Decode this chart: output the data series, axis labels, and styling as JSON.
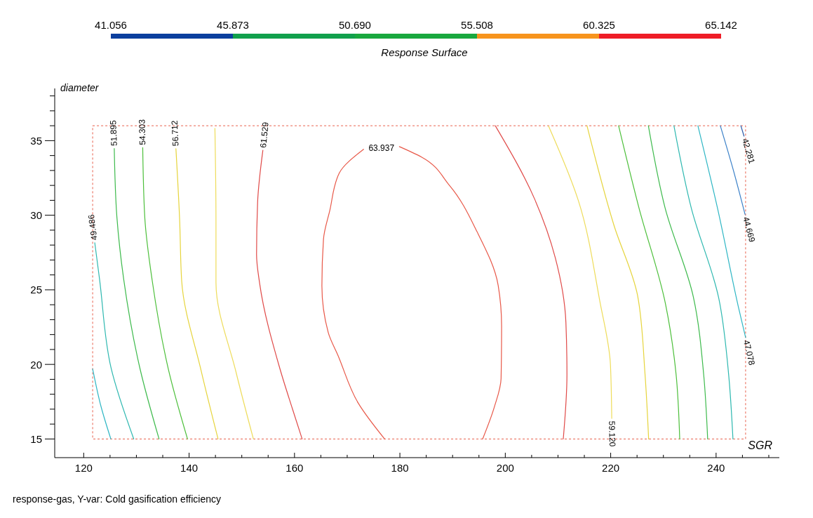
{
  "chart_data": {
    "type": "line",
    "title": "Response Surface",
    "xlabel": "SGR",
    "ylabel": "diameter",
    "annotations": [
      "response-gas, Y-var: Cold gasification efficiency"
    ],
    "xlim": [
      114.5,
      252
    ],
    "ylim": [
      13.75,
      38.5
    ],
    "xticks": [
      120,
      {
        "value": 125,
        "label": null
      },
      {
        "value": 130,
        "label": null
      },
      {
        "value": 135,
        "label": null
      },
      140,
      {
        "value": 145,
        "label": null
      },
      {
        "value": 150,
        "label": null
      },
      {
        "value": 155,
        "label": null
      },
      160,
      {
        "value": 165,
        "label": null
      },
      {
        "value": 170,
        "label": null
      },
      {
        "value": 175,
        "label": null
      },
      180,
      {
        "value": 185,
        "label": null
      },
      {
        "value": 190,
        "label": null
      },
      {
        "value": 195,
        "label": null
      },
      200,
      {
        "value": 205,
        "label": null
      },
      {
        "value": 210,
        "label": null
      },
      {
        "value": 215,
        "label": null
      },
      220,
      {
        "value": 225,
        "label": null
      },
      {
        "value": 230,
        "label": null
      },
      {
        "value": 235,
        "label": null
      },
      240,
      {
        "value": 245,
        "label": null
      },
      {
        "value": 250,
        "label": null
      }
    ],
    "yticks": [
      15,
      {
        "value": 16,
        "label": null
      },
      {
        "value": 17,
        "label": null
      },
      {
        "value": 18,
        "label": null
      },
      {
        "value": 19,
        "label": null
      },
      20,
      {
        "value": 21,
        "label": null
      },
      {
        "value": 22,
        "label": null
      },
      {
        "value": 23,
        "label": null
      },
      {
        "value": 24,
        "label": null
      },
      25,
      {
        "value": 26,
        "label": null
      },
      {
        "value": 27,
        "label": null
      },
      {
        "value": 28,
        "label": null
      },
      {
        "value": 29,
        "label": null
      },
      30,
      {
        "value": 31,
        "label": null
      },
      {
        "value": 32,
        "label": null
      },
      {
        "value": 33,
        "label": null
      },
      {
        "value": 34,
        "label": null
      },
      35,
      {
        "value": 36,
        "label": null
      },
      {
        "value": 37,
        "label": null
      },
      {
        "value": 38,
        "label": null
      }
    ],
    "clim": [
      41.056,
      65.142
    ],
    "cticks": [
      41.056,
      45.873,
      {
        "value": 50.69,
        "label": "50.690"
      },
      55.508,
      60.325,
      65.142
    ],
    "colors": [
      "#0b3f9e",
      "#11a04c",
      "#19a83e",
      "#f7941d",
      "#ee1d27"
    ],
    "series": [
      {
        "color": "#2eb6c4",
        "x": [
          121.7,
          123.3,
          125.15
        ],
        "values": [
          19.7,
          17.16,
          15
        ]
      },
      {
        "name": "49.486",
        "color": "#2eb8b0",
        "x": [
          129.5,
          125.2,
          123.0,
          122.1
        ],
        "values": [
          15,
          19.75,
          25.73,
          28.16
        ]
      },
      {
        "name": "51.895",
        "color": "#3dba4c",
        "x": [
          134.3,
          130.7,
          127.6,
          126.3,
          125.8
        ],
        "values": [
          15,
          19.69,
          25.68,
          29.87,
          34.47
        ]
      },
      {
        "name": "54.303",
        "color": "#4cbf3a",
        "x": [
          139.7,
          136.1,
          133.0,
          131.6,
          131.2
        ],
        "values": [
          15,
          19.63,
          25.62,
          29.81,
          34.53
        ]
      },
      {
        "name": "56.712",
        "color": "#e6d43c",
        "x": [
          145.5,
          142.3,
          138.6,
          138.2,
          137.5
        ],
        "values": [
          15,
          19.56,
          25.56,
          29.74,
          34.46
        ]
      },
      {
        "color": "#eedc5a",
        "x": [
          152.2,
          148.9,
          145.1,
          145.1,
          144.9
        ],
        "values": [
          15,
          19.49,
          25.49,
          29.66,
          35.82
        ]
      },
      {
        "name": "61.529",
        "color": "#e04a48",
        "x": [
          161.45,
          159.6,
          157.3,
          153.4,
          152.8,
          153.0,
          154.0
        ],
        "values": [
          15,
          17.03,
          19.63,
          25.4,
          27.36,
          30.86,
          34.35
        ]
      },
      {
        "name": "63.937",
        "color": "#e85848",
        "x": [
          177.1,
          172.1,
          168.3,
          166.4,
          165.2,
          165.5,
          166.7,
          168.5,
          173.1,
          176.5,
          179.9,
          184.1,
          189.4,
          194.7,
          198.65,
          199.3,
          199.2,
          197.9,
          195.7
        ],
        "values": [
          15,
          17.4,
          20.56,
          22.14,
          25.27,
          28.39,
          30.32,
          32.83,
          34.42,
          null,
          34.6,
          33.9,
          32.0,
          28.85,
          25.3,
          22.56,
          19.06,
          17.12,
          15
        ]
      },
      {
        "color": "#e04a48",
        "x": [
          198.1,
          205.6,
          209.5,
          211.5,
          211.7,
          211.0
        ],
        "values": [
          36,
          31.06,
          27.13,
          22.82,
          19.31,
          15
        ]
      },
      {
        "name": "59.120",
        "color": "#eedc5a",
        "x": [
          208.2,
          213.9,
          217.9,
          219.95,
          220.2
        ],
        "values": [
          35.98,
          30.94,
          24.31,
          20.0,
          16.38
        ]
      },
      {
        "color": "#e6d43c",
        "x": [
          215.5,
          220.6,
          225.1,
          226.5,
          227.2
        ],
        "values": [
          36,
          29.35,
          24.62,
          19.42,
          15
        ]
      },
      {
        "color": "#4cbf3a",
        "x": [
          221.5,
          225.3,
          230.4,
          232.4,
          233.1
        ],
        "values": [
          36,
          30.58,
          24.05,
          19.36,
          15
        ]
      },
      {
        "color": "#3dba4c",
        "x": [
          227.15,
          230.3,
          235.7,
          237.65,
          238.4
        ],
        "values": [
          36,
          30.52,
          24.5,
          19.3,
          15
        ]
      },
      {
        "color": "#2eb8b0",
        "x": [
          232.0,
          235.3,
          240.5,
          242.4,
          243.2
        ],
        "values": [
          36,
          30.47,
          24.45,
          19.25,
          15
        ]
      },
      {
        "name": "47.078",
        "color": "#2eb6c4",
        "x": [
          236.55,
          240.3,
          244.2,
          245.6
        ],
        "values": [
          36,
          30.42,
          23.9,
          21.8
        ]
      },
      {
        "name": "44.669",
        "color": "#3a80c8",
        "x": [
          240.8,
          243.3,
          245.5
        ],
        "values": [
          36,
          32.99,
          30.05
        ]
      },
      {
        "name": "42.281",
        "color": "#2a5aa8",
        "x": [
          244.7,
          245.3
        ],
        "values": [
          36,
          35.3
        ]
      }
    ]
  }
}
